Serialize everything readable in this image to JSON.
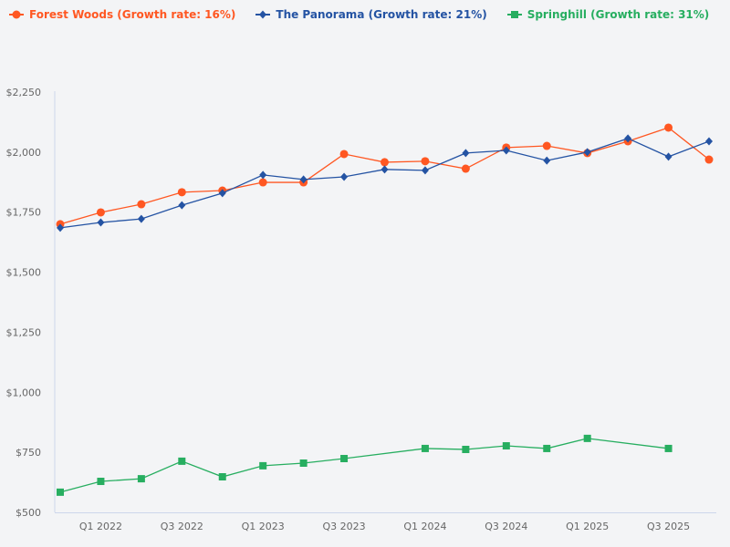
{
  "chart_data": {
    "type": "line",
    "title": "",
    "xlabel": "",
    "ylabel": "",
    "x": [
      "Q4 2021",
      "Q1 2022",
      "Q2 2022",
      "Q3 2022",
      "Q4 2022",
      "Q1 2023",
      "Q2 2023",
      "Q3 2023",
      "Q4 2023",
      "Q1 2024",
      "Q2 2024",
      "Q3 2024",
      "Q4 2024",
      "Q1 2025",
      "Q2 2025",
      "Q3 2025",
      "Q4 2025"
    ],
    "x_tick_labels": [
      "Q1 2022",
      "Q3 2022",
      "Q1 2023",
      "Q3 2023",
      "Q1 2024",
      "Q3 2024",
      "Q1 2025",
      "Q3 2025"
    ],
    "ylim": [
      500,
      2250
    ],
    "y_ticks": [
      500,
      750,
      1000,
      1250,
      1500,
      1750,
      2000,
      2250
    ],
    "y_tick_labels": [
      "$500",
      "$750",
      "$1,000",
      "$1,250",
      "$1,500",
      "$1,750",
      "$2,000",
      "$2,250"
    ],
    "grid": false,
    "legend_position": "top-left",
    "series": [
      {
        "name": "Forest Woods (Growth rate: 16%)",
        "color": "#ff5722",
        "marker": "circle",
        "values": [
          1700,
          1749,
          1783,
          1833,
          1840,
          1874,
          1874,
          1992,
          1958,
          1962,
          1931,
          2019,
          2026,
          1996,
          2045,
          2102,
          1969
        ]
      },
      {
        "name": "The Panorama (Growth rate: 21%)",
        "color": "#2453a3",
        "marker": "diamond",
        "values": [
          1685,
          1707,
          1722,
          1779,
          1829,
          1905,
          1886,
          1897,
          1928,
          1924,
          1996,
          2007,
          1965,
          2000,
          2057,
          1981,
          2045
        ]
      },
      {
        "name": "Springhill (Growth rate: 31%)",
        "color": "#27ae60",
        "marker": "square",
        "values": [
          584,
          629,
          640,
          713,
          648,
          694,
          705,
          724,
          null,
          766,
          762,
          777,
          766,
          808,
          null,
          766,
          null
        ]
      }
    ]
  }
}
